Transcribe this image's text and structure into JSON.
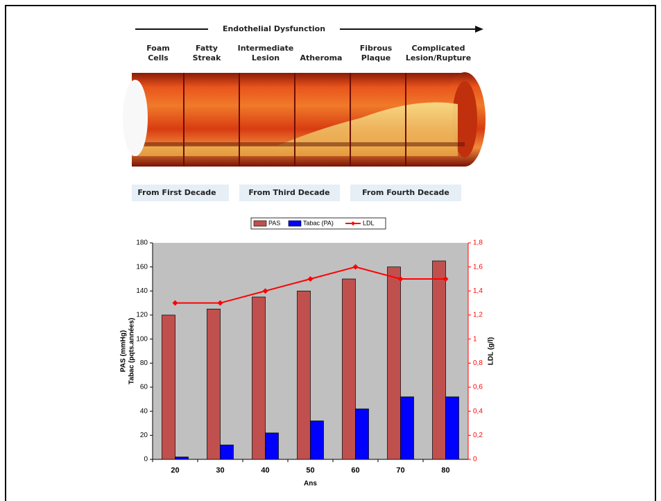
{
  "illustration": {
    "title": "Endothelial Dysfunction",
    "stages": [
      [
        "Foam",
        "Cells"
      ],
      [
        "Fatty",
        "Streak"
      ],
      [
        "Intermediate",
        "Lesion"
      ],
      [
        "Atheroma"
      ],
      [
        "Fibrous",
        "Plaque"
      ],
      [
        "Complicated",
        "Lesion/Rupture"
      ]
    ],
    "periods": [
      "From First Decade",
      "From Third Decade",
      "From Fourth Decade"
    ]
  },
  "chart_data": {
    "type": "bar",
    "categories": [
      "20",
      "30",
      "40",
      "50",
      "60",
      "70",
      "80"
    ],
    "series": [
      {
        "name": "PAS",
        "type": "bar",
        "color": "#c0504d",
        "values": [
          120,
          125,
          135,
          140,
          150,
          160,
          165
        ]
      },
      {
        "name": "Tabac (PA)",
        "type": "bar",
        "color": "#0000ff",
        "values": [
          2,
          12,
          22,
          32,
          42,
          52,
          52
        ]
      },
      {
        "name": "LDL",
        "type": "line",
        "axis": "y2",
        "color": "#ff0000",
        "values": [
          1.3,
          1.3,
          1.4,
          1.5,
          1.6,
          1.5,
          1.5
        ]
      }
    ],
    "xlabel": "Ans",
    "ylabel": [
      "PAS (mmHg)",
      "Tabac (pqts.années)"
    ],
    "y2label": "LDL (g/l)",
    "ylim": [
      0,
      180
    ],
    "yticks": [
      0,
      20,
      40,
      60,
      80,
      100,
      120,
      140,
      160,
      180
    ],
    "y2lim": [
      0,
      1.8
    ],
    "y2ticks": [
      0,
      {
        "value": 0.2,
        "label": "0,2"
      },
      {
        "value": 0.4,
        "label": "0,4"
      },
      {
        "value": 0.6,
        "label": "0,6"
      },
      {
        "value": 0.8,
        "label": "0,8"
      },
      1,
      {
        "value": 1.2,
        "label": "1,2"
      },
      {
        "value": 1.4,
        "label": "1,4"
      },
      {
        "value": 1.6,
        "label": "1,6"
      },
      {
        "value": 1.8,
        "label": "1,8"
      }
    ],
    "legend": "top",
    "plot_background": "#c0c0c0"
  }
}
